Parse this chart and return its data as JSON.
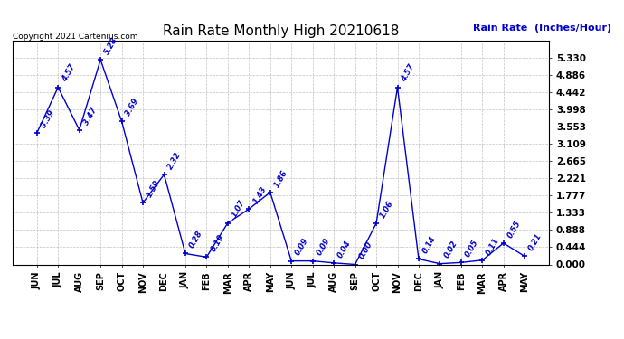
{
  "title": "Rain Rate Monthly High 20210618",
  "ylabel": "Rain Rate  (Inches/Hour)",
  "copyright": "Copyright 2021 Cartenius.com",
  "categories": [
    "JUN",
    "JUL",
    "AUG",
    "SEP",
    "OCT",
    "NOV",
    "DEC",
    "JAN",
    "FEB",
    "MAR",
    "APR",
    "MAY",
    "JUN",
    "JUL",
    "AUG",
    "SEP",
    "OCT",
    "NOV",
    "DEC",
    "JAN",
    "FEB",
    "MAR",
    "APR",
    "MAY"
  ],
  "values": [
    3.39,
    4.57,
    3.47,
    5.28,
    3.69,
    1.59,
    2.32,
    0.28,
    0.19,
    1.07,
    1.43,
    1.86,
    0.09,
    0.09,
    0.04,
    0.0,
    1.06,
    4.57,
    0.14,
    0.02,
    0.05,
    0.11,
    0.55,
    0.21
  ],
  "line_color": "#0000cc",
  "marker_color": "#0000cc",
  "title_color": "#000000",
  "ylabel_color": "#0000cc",
  "copyright_color": "#000000",
  "grid_color": "#bbbbbb",
  "background_color": "#ffffff",
  "ylim": [
    0.0,
    5.772
  ],
  "yticks": [
    0.0,
    0.444,
    0.888,
    1.333,
    1.777,
    2.221,
    2.665,
    3.109,
    3.553,
    3.998,
    4.442,
    4.886,
    5.33
  ]
}
